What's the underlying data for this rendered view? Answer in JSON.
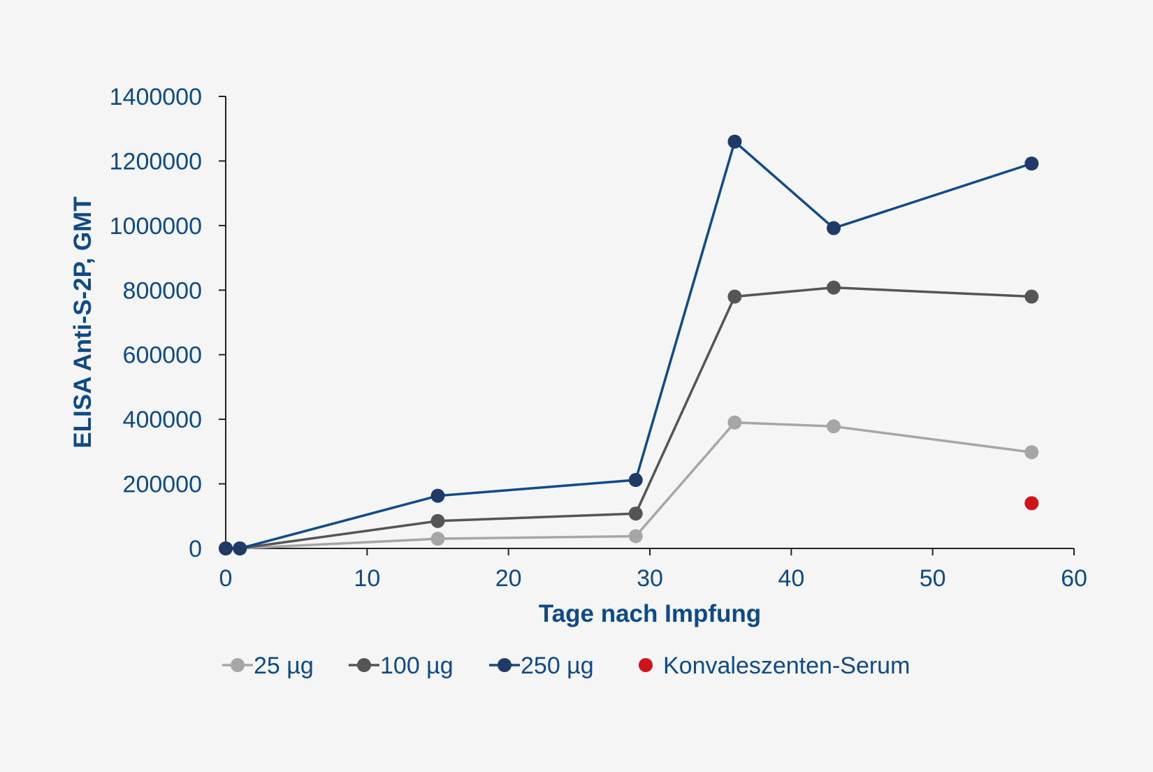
{
  "colors": {
    "background": "#f5f5f5",
    "axis": "#222222",
    "text": "#0e4a86"
  },
  "chart_data": {
    "type": "line",
    "xlabel": "Tage nach Impfung",
    "ylabel": "ELISA Anti-S-2P, GMT",
    "xlim": [
      0,
      60
    ],
    "ylim": [
      0,
      1400000
    ],
    "x_ticks": [
      "0",
      "10",
      "20",
      "30",
      "40",
      "50",
      "60"
    ],
    "y_ticks": [
      "0",
      "200000",
      "400000",
      "600000",
      "800000",
      "1000000",
      "1200000",
      "1400000"
    ],
    "grid": false,
    "legend_position": "bottom",
    "series": [
      {
        "name": "25 µg",
        "line_color": "#a6a6a6",
        "marker_color": "#a6a6a6",
        "points": [
          [
            0,
            0
          ],
          [
            1,
            0
          ],
          [
            15,
            30000
          ],
          [
            29,
            38000
          ],
          [
            36,
            390000
          ],
          [
            43,
            378000
          ],
          [
            57,
            298000
          ]
        ]
      },
      {
        "name": "100 µg",
        "line_color": "#555555",
        "marker_color": "#555555",
        "points": [
          [
            0,
            0
          ],
          [
            1,
            0
          ],
          [
            15,
            85000
          ],
          [
            29,
            108000
          ],
          [
            36,
            780000
          ],
          [
            43,
            808000
          ],
          [
            57,
            780000
          ]
        ]
      },
      {
        "name": "250 µg",
        "line_color": "#0f4a8a",
        "marker_color": "#1f3a68",
        "points": [
          [
            0,
            0
          ],
          [
            1,
            0
          ],
          [
            15,
            163000
          ],
          [
            29,
            212000
          ],
          [
            36,
            1260000
          ],
          [
            43,
            992000
          ],
          [
            57,
            1192000
          ]
        ]
      },
      {
        "name": "Konvaleszenten-Serum",
        "line_color": null,
        "marker_color": "#d0121b",
        "points": [
          [
            57,
            140000
          ]
        ]
      }
    ]
  }
}
